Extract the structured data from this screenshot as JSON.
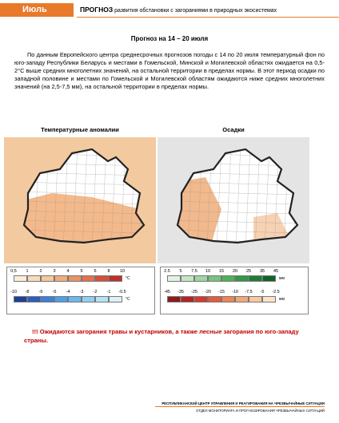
{
  "header": {
    "month": "Июль",
    "title": "ПРОГНОЗ",
    "subtitle": "развития обстановки с загораниями в природных экосистемах"
  },
  "heading": "Прогноз на 14 – 20 июля",
  "paragraph": "По данным Европейского центра среднесрочных прогнозов погоды с 14 по 20 июля температурный фон по юго-западу Республики Беларусь и местами в Гомельской, Минской и Могилевской областях ожидается на 0,5-2°С выше средних многолетних значений, на остальной территории в пределах нормы. В этот период осадки по западной половине и местами по Гомельской и Могилевской областям ожидаются ниже средних многолетних значений (на 2,5-7,5 мм), на остальной территории в пределах нормы.",
  "maps": [
    {
      "title": "Температурные аномалии",
      "scales": [
        {
          "labels": [
            "0,5",
            "1",
            "2",
            "3",
            "4",
            "5",
            "6",
            "8",
            "10"
          ],
          "unit": "°С",
          "colors": [
            "#fbeed8",
            "#f8dcb8",
            "#f5c79a",
            "#f0ad7c",
            "#eb9163",
            "#e3714c",
            "#d5503a",
            "#bf2f2b"
          ]
        },
        {
          "labels": [
            "-10",
            "-8",
            "-6",
            "-5",
            "-4",
            "-3",
            "-2",
            "-1",
            "-0.5"
          ],
          "unit": "°С",
          "colors": [
            "#1f3f9a",
            "#2a5fc0",
            "#3a80dc",
            "#4f9ee8",
            "#6bb8ef",
            "#8fcff4",
            "#b6e2f8",
            "#dcf1fb"
          ]
        }
      ]
    },
    {
      "title": "Осадки",
      "scales": [
        {
          "labels": [
            "2.5",
            "5",
            "7.5",
            "10",
            "15",
            "20",
            "25",
            "35",
            "45"
          ],
          "unit": "мм",
          "colors": [
            "#e3f2e4",
            "#c4e6c6",
            "#9fd6a4",
            "#77c47f",
            "#4fb05c",
            "#339845",
            "#1f7e35",
            "#106428"
          ]
        },
        {
          "labels": [
            "-45",
            "-35",
            "-25",
            "-20",
            "-15",
            "-10",
            "-7.5",
            "-5",
            "-2.5"
          ],
          "unit": "мм",
          "colors": [
            "#8c1a1a",
            "#b32424",
            "#d33b2c",
            "#e65c3a",
            "#ef8454",
            "#f4a877",
            "#f8c89e",
            "#fbe3c8"
          ]
        }
      ]
    }
  ],
  "warning": "!!! Ожидаются загорания травы и кустарников, а также лесные загорания по юго-западу страны.",
  "footer": {
    "line1": "РЕСПУБЛИКАНСКИЙ ЦЕНТР УПРАВЛЕНИЯ И РЕАГИРОВАНИЯ НА ЧРЕЗВЫЧАЙНЫЕ СИТУАЦИИ",
    "line2": "ОТДЕЛ МОНИТОРИНГА И ПРОГНОЗИРОВАНИЯ ЧРЕЗВЫЧАЙНЫХ СИТУАЦИЙ"
  }
}
